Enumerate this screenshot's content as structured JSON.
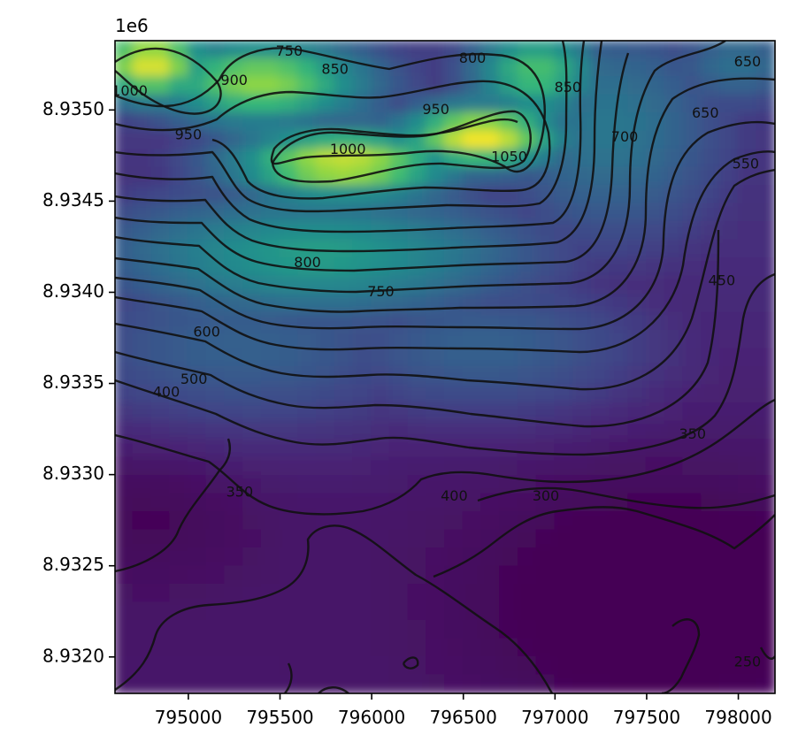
{
  "chart_data": {
    "type": "heatmap",
    "subtype": "filled elevation map with contour lines",
    "colormap": "viridis",
    "x_offset_label": "",
    "y_offset_label": "1e6",
    "xlim": [
      794600,
      798200
    ],
    "ylim": [
      8931800,
      8935380
    ],
    "x_ticks": [
      795000,
      795500,
      796000,
      796500,
      797000,
      797500,
      798000
    ],
    "x_tick_labels": [
      "795000",
      "795500",
      "796000",
      "796500",
      "797000",
      "797500",
      "798000"
    ],
    "y_ticks": [
      8932000,
      8932500,
      8933000,
      8933500,
      8934000,
      8934500,
      8935000
    ],
    "y_tick_labels": [
      "8.9320",
      "8.9325",
      "8.9330",
      "8.9335",
      "8.9340",
      "8.9345",
      "8.9350"
    ],
    "value_range": [
      230,
      1080
    ],
    "contour_levels": [
      250,
      300,
      350,
      400,
      450,
      500,
      550,
      600,
      650,
      700,
      750,
      800,
      850,
      900,
      950,
      1000,
      1050
    ],
    "features": [
      {
        "kind": "peak",
        "x": 796600,
        "y": 8934850,
        "value": 1080
      },
      {
        "kind": "peak",
        "x": 795850,
        "y": 8934700,
        "value": 1040
      },
      {
        "kind": "peak",
        "x": 794800,
        "y": 8935250,
        "value": 1060
      },
      {
        "kind": "valley",
        "x": 797600,
        "y": 8932300,
        "value": 240
      },
      {
        "kind": "valley",
        "x": 794750,
        "y": 8932800,
        "value": 330
      }
    ],
    "contour_labels": [
      {
        "text": "750",
        "x": 795550,
        "y": 8935320
      },
      {
        "text": "800",
        "x": 796550,
        "y": 8935280
      },
      {
        "text": "850",
        "x": 795800,
        "y": 8935220
      },
      {
        "text": "900",
        "x": 795250,
        "y": 8935160
      },
      {
        "text": "1000",
        "x": 794680,
        "y": 8935100
      },
      {
        "text": "950",
        "x": 795000,
        "y": 8934860
      },
      {
        "text": "1000",
        "x": 795870,
        "y": 8934780
      },
      {
        "text": "950",
        "x": 796350,
        "y": 8935000
      },
      {
        "text": "1050",
        "x": 796750,
        "y": 8934740
      },
      {
        "text": "850",
        "x": 797070,
        "y": 8935120
      },
      {
        "text": "700",
        "x": 797380,
        "y": 8934850
      },
      {
        "text": "650",
        "x": 798050,
        "y": 8935260
      },
      {
        "text": "650",
        "x": 797820,
        "y": 8934980
      },
      {
        "text": "550",
        "x": 798040,
        "y": 8934700
      },
      {
        "text": "450",
        "x": 797910,
        "y": 8934060
      },
      {
        "text": "800",
        "x": 795650,
        "y": 8934160
      },
      {
        "text": "750",
        "x": 796050,
        "y": 8934000
      },
      {
        "text": "600",
        "x": 795100,
        "y": 8933780
      },
      {
        "text": "500",
        "x": 795030,
        "y": 8933520
      },
      {
        "text": "400",
        "x": 794880,
        "y": 8933450
      },
      {
        "text": "350",
        "x": 795280,
        "y": 8932900
      },
      {
        "text": "400",
        "x": 796450,
        "y": 8932880
      },
      {
        "text": "300",
        "x": 796950,
        "y": 8932880
      },
      {
        "text": "350",
        "x": 797750,
        "y": 8933220
      },
      {
        "text": "250",
        "x": 798050,
        "y": 8931970
      }
    ]
  }
}
